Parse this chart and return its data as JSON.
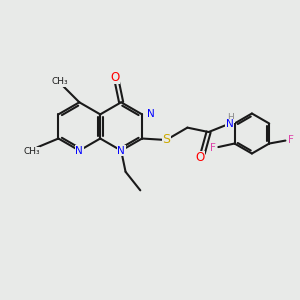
{
  "background_color": "#e8eae8",
  "bond_color": "#1a1a1a",
  "line_width": 1.5,
  "figsize": [
    3.0,
    3.0
  ],
  "dpi": 100,
  "xlim": [
    0,
    10
  ],
  "ylim": [
    0,
    10
  ],
  "atom_colors": {
    "N": "#0000ff",
    "O": "#ff0000",
    "S": "#ccaa00",
    "F": "#dd44aa",
    "NH": "#888888",
    "C": "#1a1a1a"
  },
  "font_size": 7.5
}
